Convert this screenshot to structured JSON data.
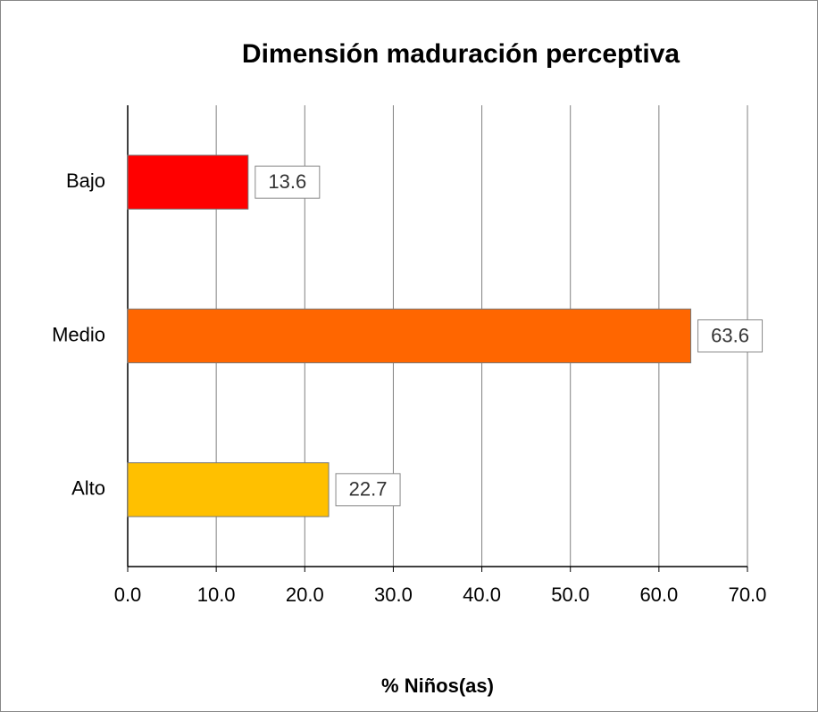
{
  "chart_data": {
    "type": "hbar",
    "title": "Dimensión maduración perceptiva",
    "x_label": "% Niños(as)",
    "categories": [
      "Bajo",
      "Medio",
      "Alto"
    ],
    "values": [
      13.6,
      63.6,
      22.7
    ],
    "colors": [
      "#ff0000",
      "#ff6600",
      "#ffc000"
    ],
    "xlim": [
      0,
      70
    ],
    "xticks": [
      {
        "value": 0,
        "label": "0.0"
      },
      {
        "value": 10,
        "label": "10.0"
      },
      {
        "value": 20,
        "label": "20.0"
      },
      {
        "value": 30,
        "label": "30.0"
      },
      {
        "value": 40,
        "label": "40.0"
      },
      {
        "value": 50,
        "label": "50.0"
      },
      {
        "value": 60,
        "label": "60.0"
      },
      {
        "value": 70,
        "label": "70.0"
      }
    ],
    "grid": true
  }
}
